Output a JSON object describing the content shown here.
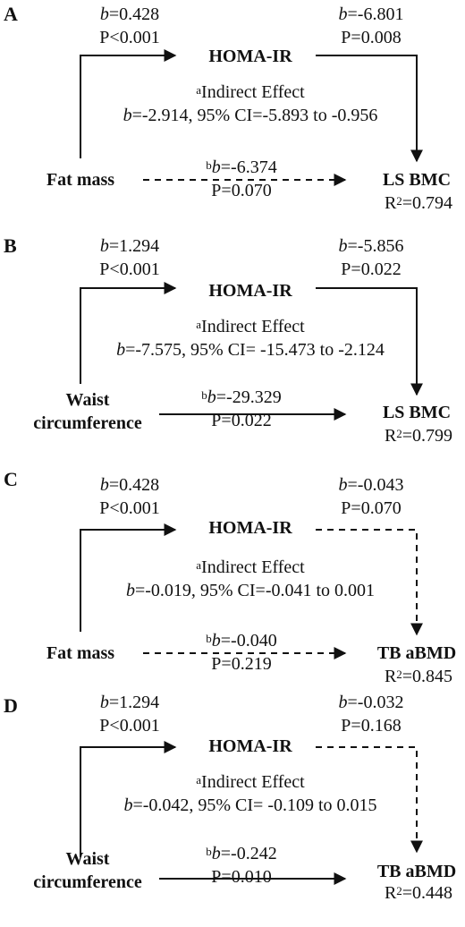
{
  "panels": [
    {
      "letter": "A",
      "predictor": [
        "Fat mass"
      ],
      "mediator": "HOMA-IR",
      "outcome": "LS BMC",
      "r2_label": "R",
      "r2_exp": "2",
      "r2_value": "=0.794",
      "path_a": {
        "b_sym": "b",
        "b_val": "=0.428",
        "p": "P<0.001",
        "style": "solid"
      },
      "path_b": {
        "b_sym": "b",
        "b_val": "=-6.801",
        "p": "P=0.008",
        "style": "solid"
      },
      "indirect": {
        "sup": "a",
        "title": "Indirect Effect",
        "b_sym": "b",
        "stats": "=-2.914, 95% CI=-5.893 to -0.956"
      },
      "direct": {
        "sup": "b",
        "b_sym": "b",
        "b_val": "=-6.374",
        "p": "P=0.070",
        "style": "dashed"
      }
    },
    {
      "letter": "B",
      "predictor": [
        "Waist",
        "circumference"
      ],
      "mediator": "HOMA-IR",
      "outcome": "LS BMC",
      "r2_label": "R",
      "r2_exp": "2",
      "r2_value": "=0.799",
      "path_a": {
        "b_sym": "b",
        "b_val": "=1.294",
        "p": "P<0.001",
        "style": "solid"
      },
      "path_b": {
        "b_sym": "b",
        "b_val": "=-5.856",
        "p": "P=0.022",
        "style": "solid"
      },
      "indirect": {
        "sup": "a",
        "title": "Indirect Effect",
        "b_sym": "b",
        "stats": "=-7.575, 95% CI= -15.473 to -2.124"
      },
      "direct": {
        "sup": "b",
        "b_sym": "b",
        "b_val": "=-29.329",
        "p": "P=0.022",
        "style": "solid"
      }
    },
    {
      "letter": "C",
      "predictor": [
        "Fat mass"
      ],
      "mediator": "HOMA-IR",
      "outcome": "TB aBMD",
      "r2_label": "R",
      "r2_exp": "2",
      "r2_value": "=0.845",
      "path_a": {
        "b_sym": "b",
        "b_val": "=0.428",
        "p": "P<0.001",
        "style": "solid"
      },
      "path_b": {
        "b_sym": "b",
        "b_val": "=-0.043",
        "p": "P=0.070",
        "style": "dashed"
      },
      "indirect": {
        "sup": "a",
        "title": "Indirect Effect",
        "b_sym": "b",
        "stats": "=-0.019, 95% CI=-0.041 to 0.001"
      },
      "direct": {
        "sup": "b",
        "b_sym": "b",
        "b_val": "=-0.040",
        "p": "P=0.219",
        "style": "dashed"
      }
    },
    {
      "letter": "D",
      "predictor": [
        "Waist",
        "circumference"
      ],
      "mediator": "HOMA-IR",
      "outcome": "TB aBMD",
      "r2_label": "R",
      "r2_exp": "2",
      "r2_value": "=0.448",
      "path_a": {
        "b_sym": "b",
        "b_val": "=1.294",
        "p": "P<0.001",
        "style": "solid"
      },
      "path_b": {
        "b_sym": "b",
        "b_val": "=-0.032",
        "p": "P=0.168",
        "style": "dashed"
      },
      "indirect": {
        "sup": "a",
        "title": "Indirect Effect",
        "b_sym": "b",
        "stats": "=-0.042, 95% CI= -0.109 to 0.015"
      },
      "direct": {
        "sup": "b",
        "b_sym": "b",
        "b_val": "=-0.242",
        "p": "P=0.010",
        "style": "solid"
      }
    }
  ]
}
